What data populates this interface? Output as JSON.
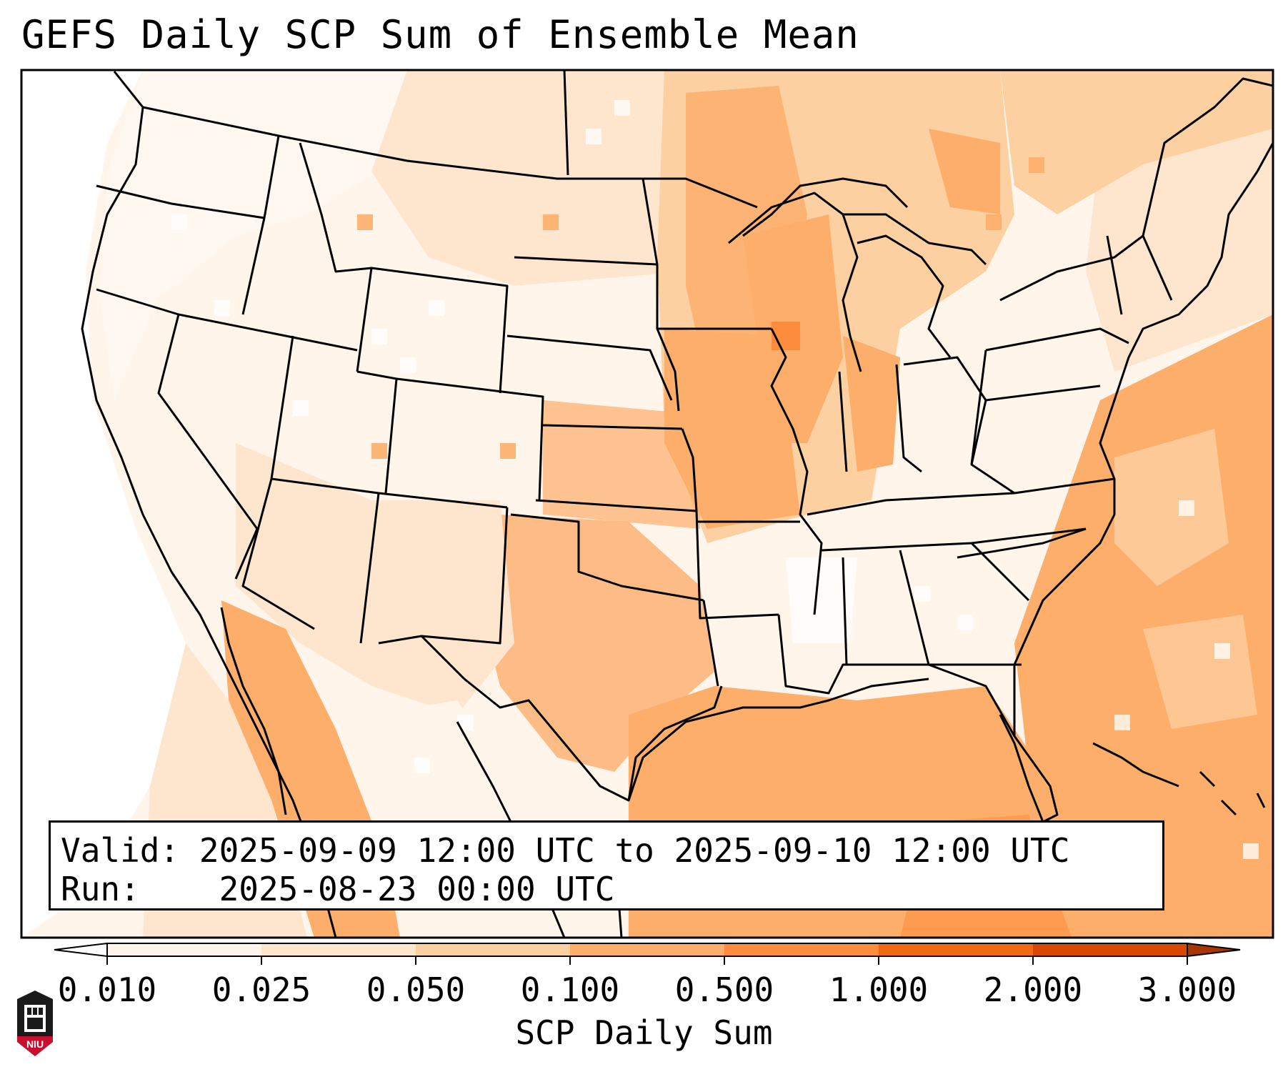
{
  "title": "GEFS Daily SCP Sum of Ensemble Mean",
  "info": {
    "valid_label": "Valid:",
    "valid_value": "2025-09-09 12:00 UTC to 2025-09-10 12:00 UTC",
    "run_label": "Run:",
    "run_value": "2025-08-23 00:00 UTC"
  },
  "colorbar": {
    "label": "SCP Daily Sum",
    "ticks": [
      "0.010",
      "0.025",
      "0.050",
      "0.100",
      "0.500",
      "1.000",
      "2.000",
      "3.000"
    ],
    "colors": [
      "#fff5eb",
      "#fee6ce",
      "#fdd0a2",
      "#fdae6b",
      "#fd8d3c",
      "#f16913",
      "#d94801",
      "#a63603"
    ],
    "extend": "both"
  },
  "logo": {
    "text": "NIU",
    "colors": {
      "primary": "#c8102e",
      "secondary": "#1a1a1a"
    }
  },
  "field_colors": {
    "white": "#ffffff",
    "very_light": "#fff5eb",
    "light": "#fee6ce",
    "medium_light": "#fdd0a2",
    "medium": "#fdae6b",
    "strong": "#fd8d3c"
  }
}
